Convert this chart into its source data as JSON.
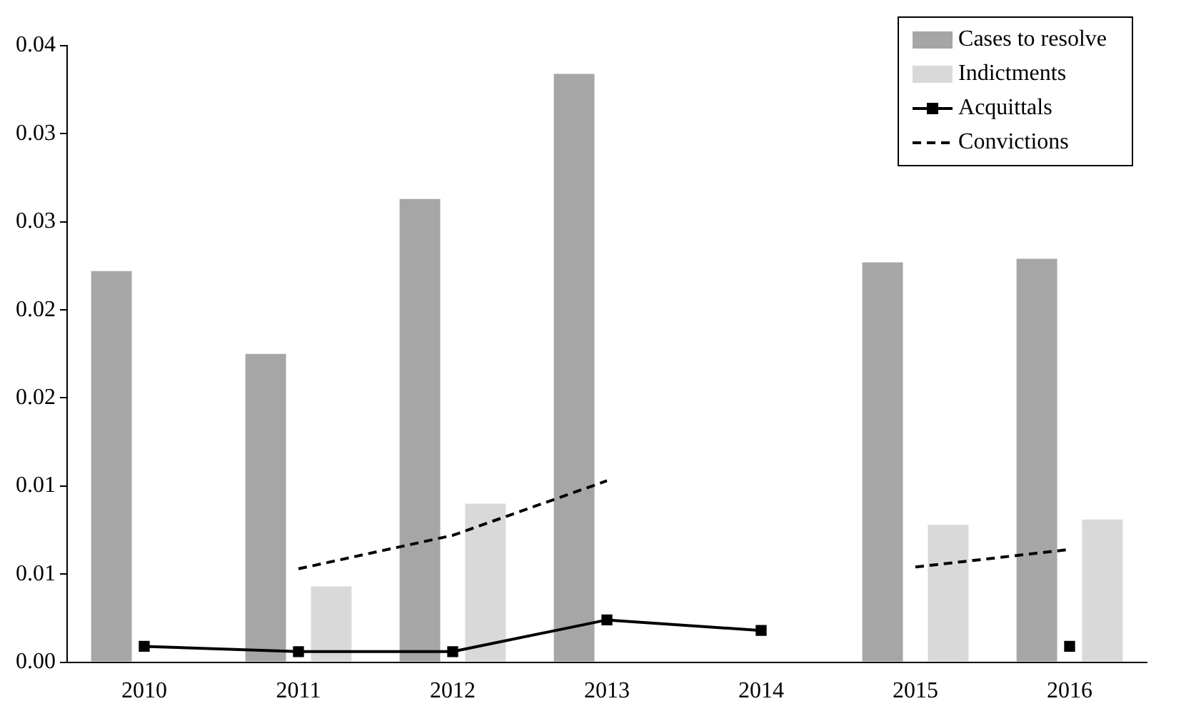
{
  "chart_data": {
    "type": "bar",
    "categories": [
      "2010",
      "2011",
      "2012",
      "2013",
      "2014",
      "2015",
      "2016"
    ],
    "series": [
      {
        "name": "Cases to resolve",
        "color": "#a6a6a6",
        "values": [
          0.0222,
          0.0175,
          0.0263,
          0.0334,
          null,
          0.0227,
          0.0229
        ]
      },
      {
        "name": "Indictments",
        "color": "#d9d9d9",
        "values": [
          null,
          0.0043,
          0.009,
          null,
          null,
          0.0078,
          0.0081
        ]
      },
      {
        "name": "Acquittals",
        "type": "line",
        "color": "#000000",
        "marker": "square",
        "line_style": "solid",
        "values": [
          0.0009,
          0.0006,
          0.0006,
          0.0024,
          0.0018,
          null,
          0.0009
        ]
      },
      {
        "name": "Convictions",
        "type": "line",
        "color": "#000000",
        "marker": "none",
        "line_style": "dashed",
        "values": [
          null,
          0.0053,
          0.0072,
          0.0103,
          null,
          0.0054,
          0.0064
        ]
      }
    ],
    "ylim": [
      0,
      0.035
    ],
    "yticks": [
      {
        "value": 0,
        "label": "0.00"
      },
      {
        "value": 0.005,
        "label": "0.01"
      },
      {
        "value": 0.01,
        "label": "0.01"
      },
      {
        "value": 0.015,
        "label": "0.02"
      },
      {
        "value": 0.02,
        "label": "0.02"
      },
      {
        "value": 0.025,
        "label": "0.03"
      },
      {
        "value": 0.03,
        "label": "0.03"
      },
      {
        "value": 0.035,
        "label": "0.04"
      }
    ],
    "grid": false,
    "legend": "top right"
  }
}
